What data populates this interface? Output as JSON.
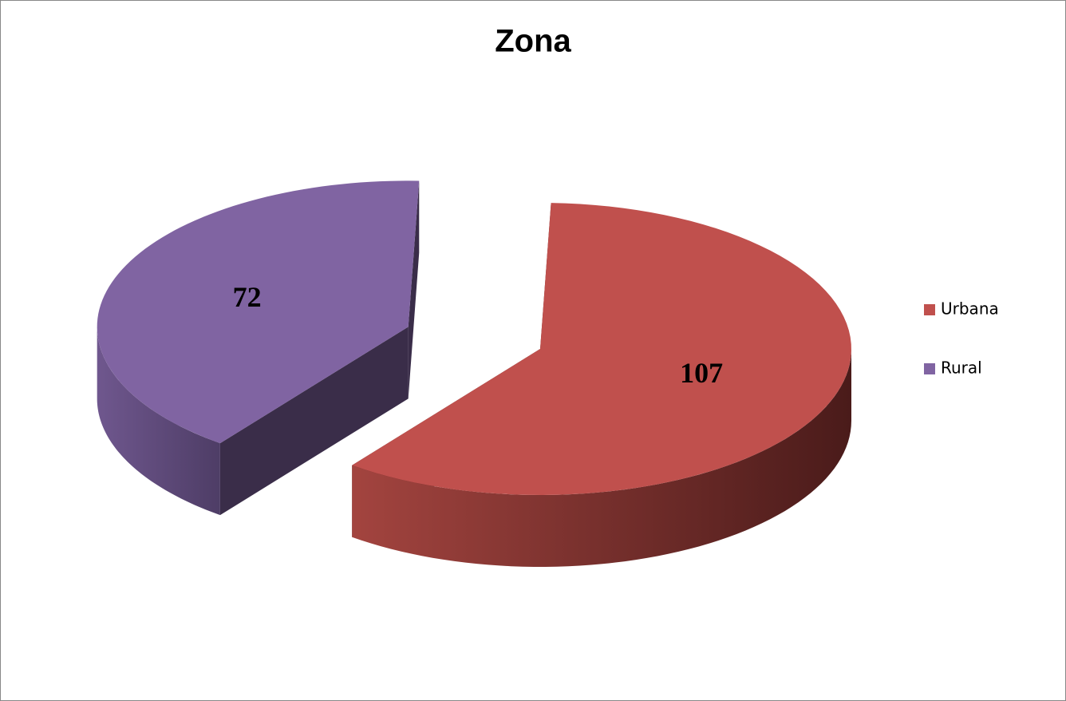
{
  "chart_data": {
    "type": "pie",
    "title": "Zona",
    "categories": [
      "Urbana",
      "Rural"
    ],
    "values": [
      107,
      72
    ],
    "colors": [
      "#c0504d",
      "#8064a2"
    ],
    "legend": "right"
  }
}
